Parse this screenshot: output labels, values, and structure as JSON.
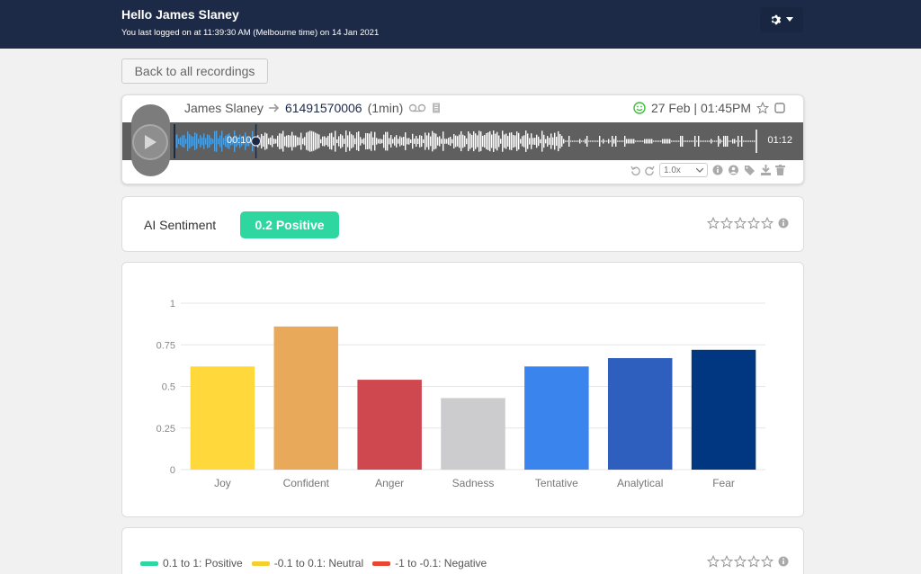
{
  "header": {
    "greeting": "Hello James Slaney",
    "last_login": "You last logged on at 11:39:30 AM (Melbourne time) on 14 Jan 2021"
  },
  "back_button": "Back to all recordings",
  "recording": {
    "caller": "James Slaney",
    "number": "61491570006",
    "duration": "(1min)",
    "datetime": "27 Feb | 01:45PM",
    "current_time": "00:10",
    "total_time": "01:12",
    "progress": 0.14,
    "speed": "1.0x"
  },
  "sentiment": {
    "label": "AI Sentiment",
    "badge": "0.2 Positive",
    "badge_color": "#2ed6a0"
  },
  "chart_data": {
    "type": "bar",
    "categories": [
      "Joy",
      "Confident",
      "Anger",
      "Sadness",
      "Tentative",
      "Analytical",
      "Fear"
    ],
    "values": [
      0.62,
      0.86,
      0.54,
      0.43,
      0.62,
      0.67,
      0.72
    ],
    "colors": [
      "#ffd83b",
      "#e9a95a",
      "#cf4850",
      "#ccccce",
      "#3a84ee",
      "#2e5fbf",
      "#003780"
    ],
    "ylim": [
      0,
      1
    ],
    "yticks": [
      "0",
      "0.25",
      "0.5",
      "0.75",
      "1"
    ],
    "grid": true
  },
  "legend": {
    "items": [
      {
        "label": "0.1 to 1: Positive",
        "color": "#2ed6a0"
      },
      {
        "label": "-0.1 to 0.1: Neutral",
        "color": "#f5cf2c"
      },
      {
        "label": "-1 to -0.1: Negative",
        "color": "#e8462f"
      }
    ]
  }
}
